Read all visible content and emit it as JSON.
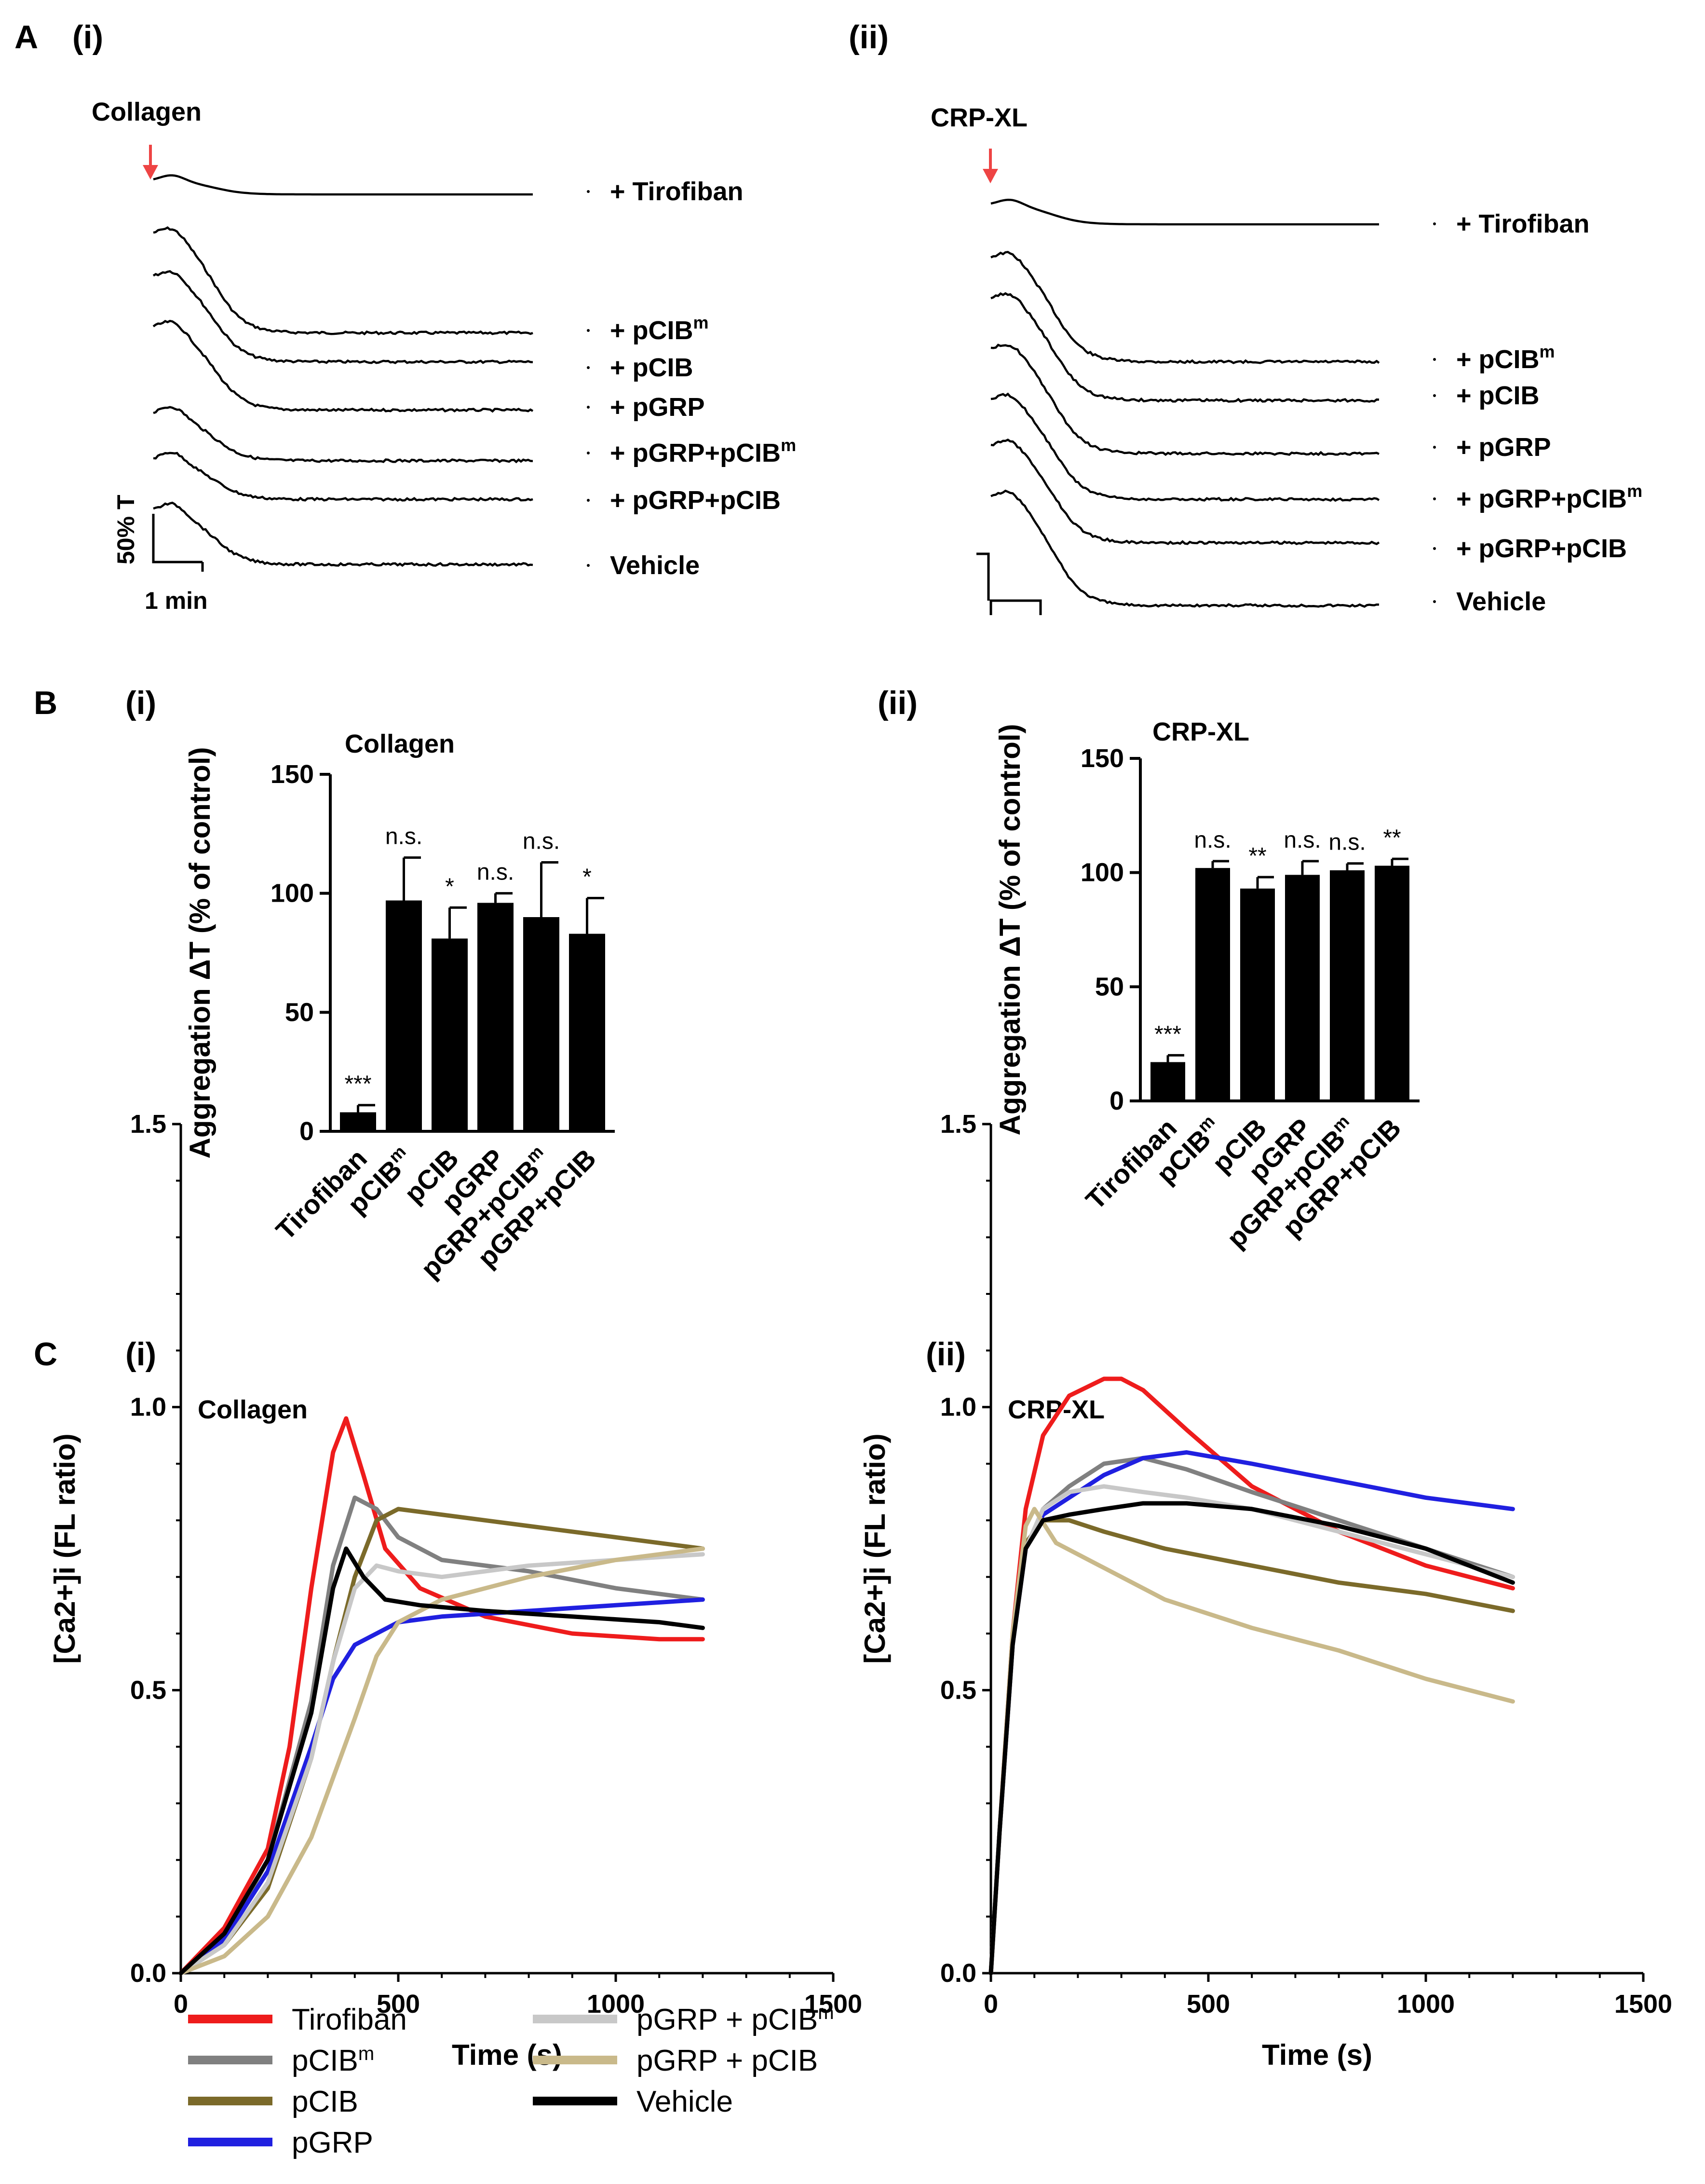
{
  "panels": {
    "A": "A",
    "B": "B",
    "C": "C",
    "i": "(i)",
    "ii": "(ii)"
  },
  "traces": {
    "i": {
      "agonist": "Collagen",
      "labels": [
        {
          "main": "+ Tirofiban",
          "sup": ""
        },
        {
          "main": "+ pCIB",
          "sup": "m"
        },
        {
          "main": "+ pCIB",
          "sup": ""
        },
        {
          "main": "+ pGRP",
          "sup": ""
        },
        {
          "main": "+ pGRP+pCIB",
          "sup": "m"
        },
        {
          "main": "+ pGRP+pCIB",
          "sup": ""
        },
        {
          "main": "Vehicle",
          "sup": ""
        }
      ],
      "scale_y": "50% T",
      "scale_x": "1 min"
    },
    "ii": {
      "agonist": "CRP-XL",
      "labels": [
        {
          "main": "+ Tirofiban",
          "sup": ""
        },
        {
          "main": "+ pCIB",
          "sup": "m"
        },
        {
          "main": "+ pCIB",
          "sup": ""
        },
        {
          "main": "+ pGRP",
          "sup": ""
        },
        {
          "main": "+ pGRP+pCIB",
          "sup": "m"
        },
        {
          "main": "+ pGRP+pCIB",
          "sup": ""
        },
        {
          "main": "Vehicle",
          "sup": ""
        }
      ]
    }
  },
  "chart_data": [
    {
      "id": "B-i",
      "type": "bar",
      "title": "Collagen",
      "ylabel": "Aggregation ΔT (% of control)",
      "ylim": [
        0,
        150
      ],
      "yticks": [
        "0",
        "50",
        "100",
        "150"
      ],
      "categories": [
        {
          "main": "Tirofiban",
          "sup": ""
        },
        {
          "main": "pCIB",
          "sup": "m"
        },
        {
          "main": "pCIB",
          "sup": ""
        },
        {
          "main": "pGRP",
          "sup": ""
        },
        {
          "main": "pGRP+pCIB",
          "sup": "m"
        },
        {
          "main": "pGRP+pCIB",
          "sup": ""
        }
      ],
      "values": [
        8,
        97,
        81,
        96,
        90,
        83
      ],
      "errors": [
        3,
        18,
        13,
        4,
        23,
        15
      ],
      "significance": [
        "***",
        "n.s.",
        "*",
        "n.s.",
        "n.s.",
        "*"
      ]
    },
    {
      "id": "B-ii",
      "type": "bar",
      "title": "CRP-XL",
      "ylabel": "Aggregation ΔT (% of control)",
      "ylim": [
        0,
        150
      ],
      "yticks": [
        "0",
        "50",
        "100",
        "150"
      ],
      "categories": [
        {
          "main": "Tirofiban",
          "sup": ""
        },
        {
          "main": "pCIB",
          "sup": "m"
        },
        {
          "main": "pCIB",
          "sup": ""
        },
        {
          "main": "pGRP",
          "sup": ""
        },
        {
          "main": "pGRP+pCIB",
          "sup": "m"
        },
        {
          "main": "pGRP+pCIB",
          "sup": ""
        }
      ],
      "values": [
        17,
        102,
        93,
        99,
        101,
        103
      ],
      "errors": [
        3,
        3,
        5,
        6,
        3,
        3
      ],
      "significance": [
        "***",
        "n.s.",
        "**",
        "n.s.",
        "n.s.",
        "**"
      ]
    },
    {
      "id": "C-i",
      "type": "line",
      "title": "Collagen",
      "xlabel": "Time (s)",
      "ylabel": "[Ca2+]i (FL ratio)",
      "xlim": [
        0,
        1500
      ],
      "ylim": [
        0,
        1.5
      ],
      "xticks": [
        "0",
        "500",
        "1000",
        "1500"
      ],
      "yticks": [
        "0.0",
        "0.5",
        "1.0",
        "1.5"
      ],
      "series": [
        {
          "name": "Tirofiban",
          "color": "#ee1c1c",
          "x": [
            0,
            100,
            200,
            250,
            300,
            350,
            380,
            420,
            470,
            550,
            700,
            900,
            1100,
            1200
          ],
          "y": [
            0,
            0.08,
            0.22,
            0.4,
            0.68,
            0.92,
            0.98,
            0.88,
            0.75,
            0.68,
            0.63,
            0.6,
            0.59,
            0.59
          ]
        },
        {
          "name": "pCIBm",
          "color": "#808080",
          "x": [
            0,
            100,
            200,
            300,
            350,
            400,
            450,
            500,
            600,
            800,
            1000,
            1200
          ],
          "y": [
            0,
            0.06,
            0.2,
            0.48,
            0.72,
            0.84,
            0.82,
            0.77,
            0.73,
            0.71,
            0.68,
            0.66
          ]
        },
        {
          "name": "pCIB",
          "color": "#7b6a2a",
          "x": [
            0,
            100,
            200,
            300,
            350,
            400,
            450,
            500,
            600,
            800,
            1000,
            1200
          ],
          "y": [
            0,
            0.05,
            0.15,
            0.38,
            0.55,
            0.7,
            0.8,
            0.82,
            0.81,
            0.79,
            0.77,
            0.75
          ]
        },
        {
          "name": "pGRP",
          "color": "#2020e0",
          "x": [
            0,
            100,
            200,
            300,
            350,
            400,
            450,
            500,
            600,
            800,
            1000,
            1200
          ],
          "y": [
            0,
            0.06,
            0.18,
            0.4,
            0.52,
            0.58,
            0.6,
            0.62,
            0.63,
            0.64,
            0.65,
            0.66
          ]
        },
        {
          "name": "pGRP + pCIBm",
          "color": "#c8c8c8",
          "x": [
            0,
            100,
            200,
            300,
            350,
            400,
            450,
            500,
            600,
            800,
            1000,
            1200
          ],
          "y": [
            0,
            0.05,
            0.16,
            0.38,
            0.55,
            0.68,
            0.72,
            0.71,
            0.7,
            0.72,
            0.73,
            0.74
          ]
        },
        {
          "name": "pGRP + pCIB",
          "color": "#c9b98a",
          "x": [
            0,
            100,
            200,
            300,
            400,
            450,
            500,
            600,
            800,
            1000,
            1200
          ],
          "y": [
            0,
            0.03,
            0.1,
            0.24,
            0.45,
            0.56,
            0.62,
            0.66,
            0.7,
            0.73,
            0.75
          ]
        },
        {
          "name": "Vehicle",
          "color": "#000000",
          "x": [
            0,
            100,
            200,
            300,
            350,
            380,
            420,
            470,
            550,
            700,
            900,
            1100,
            1200
          ],
          "y": [
            0,
            0.07,
            0.2,
            0.46,
            0.68,
            0.75,
            0.7,
            0.66,
            0.65,
            0.64,
            0.63,
            0.62,
            0.61
          ]
        }
      ]
    },
    {
      "id": "C-ii",
      "type": "line",
      "title": "CRP-XL",
      "xlabel": "Time (s)",
      "ylabel": "[Ca2+]i (FL ratio)",
      "xlim": [
        0,
        1500
      ],
      "ylim": [
        0,
        1.5
      ],
      "xticks": [
        "0",
        "500",
        "1000",
        "1500"
      ],
      "yticks": [
        "0.0",
        "0.5",
        "1.0",
        "1.5"
      ],
      "series": [
        {
          "name": "Tirofiban",
          "color": "#ee1c1c",
          "x": [
            0,
            20,
            50,
            80,
            120,
            180,
            260,
            300,
            350,
            450,
            600,
            800,
            1000,
            1200
          ],
          "y": [
            0,
            0.25,
            0.6,
            0.82,
            0.95,
            1.02,
            1.05,
            1.05,
            1.03,
            0.96,
            0.86,
            0.78,
            0.72,
            0.68
          ]
        },
        {
          "name": "pCIBm",
          "color": "#808080",
          "x": [
            0,
            20,
            50,
            80,
            120,
            180,
            260,
            350,
            450,
            600,
            800,
            1000,
            1200
          ],
          "y": [
            0,
            0.25,
            0.58,
            0.75,
            0.82,
            0.86,
            0.9,
            0.91,
            0.89,
            0.85,
            0.8,
            0.75,
            0.7
          ]
        },
        {
          "name": "pCIB",
          "color": "#7b6a2a",
          "x": [
            0,
            20,
            50,
            80,
            120,
            180,
            260,
            400,
            600,
            800,
            1000,
            1200
          ],
          "y": [
            0,
            0.25,
            0.58,
            0.76,
            0.8,
            0.8,
            0.78,
            0.75,
            0.72,
            0.69,
            0.67,
            0.64
          ]
        },
        {
          "name": "pGRP",
          "color": "#2020e0",
          "x": [
            0,
            20,
            50,
            80,
            120,
            180,
            260,
            350,
            450,
            600,
            800,
            1000,
            1200
          ],
          "y": [
            0,
            0.25,
            0.58,
            0.75,
            0.81,
            0.84,
            0.88,
            0.91,
            0.92,
            0.9,
            0.87,
            0.84,
            0.82
          ]
        },
        {
          "name": "pGRP + pCIBm",
          "color": "#c8c8c8",
          "x": [
            0,
            20,
            50,
            80,
            120,
            180,
            260,
            350,
            450,
            600,
            800,
            1000,
            1200
          ],
          "y": [
            0,
            0.25,
            0.58,
            0.75,
            0.82,
            0.85,
            0.86,
            0.85,
            0.84,
            0.82,
            0.78,
            0.74,
            0.7
          ]
        },
        {
          "name": "pGRP + pCIB",
          "color": "#c9b98a",
          "x": [
            0,
            20,
            50,
            80,
            100,
            150,
            250,
            400,
            600,
            800,
            1000,
            1200
          ],
          "y": [
            0,
            0.25,
            0.6,
            0.79,
            0.82,
            0.76,
            0.72,
            0.66,
            0.61,
            0.57,
            0.52,
            0.48
          ]
        },
        {
          "name": "Vehicle",
          "color": "#000000",
          "x": [
            0,
            20,
            50,
            80,
            120,
            180,
            260,
            350,
            450,
            600,
            800,
            1000,
            1200
          ],
          "y": [
            0,
            0.25,
            0.58,
            0.75,
            0.8,
            0.81,
            0.82,
            0.83,
            0.83,
            0.82,
            0.79,
            0.75,
            0.69
          ]
        }
      ]
    }
  ],
  "legend": [
    {
      "main": "Tirofiban",
      "sup": "",
      "color": "#ee1c1c"
    },
    {
      "main": "pCIB",
      "sup": "m",
      "color": "#808080"
    },
    {
      "main": "pCIB",
      "sup": "",
      "color": "#7b6a2a"
    },
    {
      "main": "pGRP",
      "sup": "",
      "color": "#2020e0"
    },
    {
      "main": "pGRP + pCIB",
      "sup": "m",
      "color": "#c8c8c8"
    },
    {
      "main": "pGRP + pCIB",
      "sup": "",
      "color": "#c9b98a"
    },
    {
      "main": "Vehicle",
      "sup": "",
      "color": "#000000"
    }
  ]
}
